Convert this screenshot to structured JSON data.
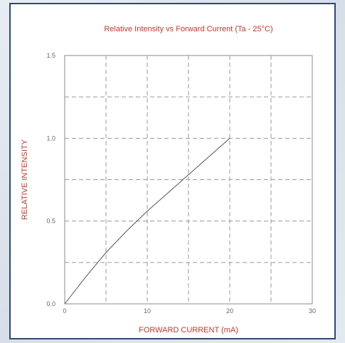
{
  "chart_data": {
    "type": "line",
    "title": "Relative Intensity vs Forward Current (Ta - 25°C)",
    "xlabel": "FORWARD CURRENT (mA)",
    "ylabel": "RELATIVE INTENSITY",
    "xlim": [
      0,
      30
    ],
    "ylim": [
      0,
      1.5
    ],
    "x_ticks": [
      0,
      10,
      20,
      30
    ],
    "y_ticks": [
      0.0,
      0.5,
      1.0,
      1.5
    ],
    "x_tick_labels": [
      "0",
      "10",
      "20",
      "30"
    ],
    "y_tick_labels": [
      "0.0",
      "0.5",
      "1.0",
      "1.5"
    ],
    "x_grid": [
      5,
      10,
      15,
      20,
      25
    ],
    "y_grid": [
      0.25,
      0.5,
      0.75,
      1.0,
      1.25
    ],
    "grid": true,
    "grid_style": "dashed",
    "series": [
      {
        "x": [
          0,
          2.5,
          5,
          7.5,
          10,
          12.5,
          15,
          17.5,
          20
        ],
        "y": [
          0,
          0.16,
          0.31,
          0.44,
          0.56,
          0.67,
          0.78,
          0.89,
          1.0
        ]
      }
    ],
    "colors": {
      "title": "#c0392b",
      "axis_label": "#c0392b",
      "line": "#555555",
      "grid": "#9a9a9a",
      "frame": "#2f4a6e"
    }
  }
}
